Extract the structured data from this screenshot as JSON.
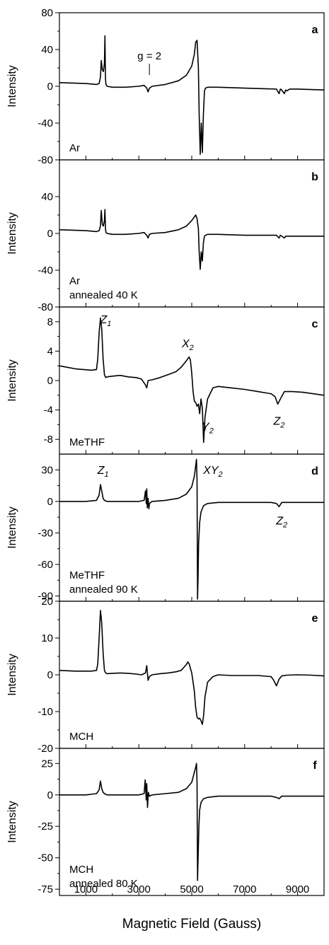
{
  "chart_data": [
    {
      "type": "line",
      "panel": "a",
      "ylabel": "Intensity",
      "ylim": [
        -80,
        80
      ],
      "yticks": [
        80,
        40,
        0,
        -40,
        -80
      ],
      "xlim": [
        0,
        10000
      ],
      "sample": [
        "Ar"
      ],
      "annotations": [
        {
          "text": "g = 2",
          "x": 3400,
          "y": 0
        }
      ],
      "peaks": [],
      "series": [
        {
          "x": [
            0,
            1000,
            1400,
            1500,
            1550,
            1580,
            1620,
            1660,
            1700,
            1720,
            1740,
            1760,
            1800,
            2000,
            2500,
            3000,
            3200,
            3300,
            3350,
            3400,
            3500,
            4000,
            4500,
            4800,
            5000,
            5100,
            5150,
            5200,
            5250,
            5280,
            5320,
            5360,
            5400,
            5440,
            5480,
            5520,
            5600,
            6000,
            7000,
            8200,
            8300,
            8350,
            8400,
            8500,
            8550,
            8600,
            8700,
            9000,
            10000
          ],
          "y": [
            4,
            3,
            2,
            3,
            10,
            28,
            18,
            16,
            25,
            55,
            8,
            2,
            0,
            -1,
            -1,
            0,
            1,
            -2,
            -6,
            -2,
            0,
            2,
            6,
            12,
            22,
            35,
            48,
            50,
            20,
            -30,
            -74,
            -40,
            -72,
            -30,
            -5,
            -2,
            -1,
            -1,
            -2,
            -3,
            -8,
            -3,
            -4,
            -8,
            -4,
            -5,
            -3,
            -3,
            -4
          ]
        }
      ]
    },
    {
      "type": "line",
      "panel": "b",
      "ylabel": "Intensity",
      "ylim": [
        -80,
        80
      ],
      "yticks": [
        40,
        0,
        -40,
        -80
      ],
      "xlim": [
        0,
        10000
      ],
      "sample": [
        "Ar",
        "annealed 40 K"
      ],
      "annotations": [],
      "peaks": [],
      "series": [
        {
          "x": [
            0,
            1000,
            1400,
            1500,
            1550,
            1580,
            1620,
            1660,
            1700,
            1720,
            1740,
            1760,
            1800,
            2000,
            2500,
            3000,
            3200,
            3300,
            3350,
            3400,
            3500,
            4000,
            4500,
            4800,
            5000,
            5100,
            5150,
            5200,
            5250,
            5280,
            5320,
            5360,
            5400,
            5440,
            5480,
            5520,
            5600,
            6000,
            7000,
            8200,
            8300,
            8350,
            8400,
            8500,
            8550,
            8600,
            8700,
            9000,
            10000
          ],
          "y": [
            4,
            3,
            2,
            3,
            8,
            25,
            10,
            8,
            14,
            26,
            5,
            1,
            0,
            -1,
            -1,
            0,
            1,
            -2,
            -5,
            -1,
            0,
            1,
            4,
            8,
            14,
            18,
            20,
            16,
            5,
            -20,
            -39,
            -20,
            -30,
            -10,
            -3,
            -2,
            -1,
            -1,
            -2,
            -2,
            -5,
            -2,
            -3,
            -5,
            -3,
            -3,
            -3,
            -3,
            -3
          ]
        }
      ]
    },
    {
      "type": "line",
      "panel": "c",
      "ylabel": "Intensity",
      "ylim": [
        -10,
        10
      ],
      "yticks": [
        8,
        4,
        0,
        -4,
        -8
      ],
      "xlim": [
        0,
        10000
      ],
      "sample": [
        "MeTHF"
      ],
      "annotations": [],
      "peaks": [
        {
          "base": "Z",
          "sub": "1",
          "x": 1750,
          "y": 7.8
        },
        {
          "base": "X",
          "sub": "2",
          "x": 4850,
          "y": 4.5
        },
        {
          "base": "Y",
          "sub": "2",
          "x": 5600,
          "y": -6.8
        },
        {
          "base": "Z",
          "sub": "2",
          "x": 8300,
          "y": -6.0
        }
      ],
      "series": [
        {
          "x": [
            0,
            300,
            600,
            900,
            1200,
            1400,
            1450,
            1500,
            1550,
            1600,
            1650,
            1700,
            1750,
            1800,
            2000,
            2300,
            2600,
            2900,
            3100,
            3250,
            3300,
            3350,
            3500,
            3800,
            4100,
            4400,
            4600,
            4800,
            4900,
            4950,
            5000,
            5050,
            5100,
            5150,
            5200,
            5250,
            5300,
            5350,
            5400,
            5450,
            5500,
            5600,
            5800,
            6000,
            6500,
            7000,
            7500,
            8000,
            8150,
            8250,
            8350,
            8500,
            8800,
            9200,
            9600,
            10000
          ],
          "y": [
            2.0,
            1.8,
            1.6,
            1.5,
            1.4,
            1.5,
            3.0,
            6.5,
            8.5,
            7.0,
            3.0,
            0.8,
            0.4,
            0.5,
            0.6,
            0.7,
            0.5,
            0.4,
            0.2,
            -0.6,
            -1.0,
            0.0,
            0.1,
            0.4,
            0.8,
            1.2,
            1.8,
            2.7,
            3.2,
            2.8,
            1.0,
            -1.5,
            -2.8,
            -3.0,
            -3.5,
            -3.2,
            -4.5,
            -2.5,
            -3.8,
            -8.4,
            -5.0,
            -2.5,
            -1.0,
            -0.8,
            -1.0,
            -1.2,
            -1.5,
            -1.8,
            -2.2,
            -3.2,
            -2.5,
            -1.5,
            -1.5,
            -1.6,
            -1.8,
            -2.0
          ]
        }
      ]
    },
    {
      "type": "line",
      "panel": "d",
      "ylabel": "Intensity",
      "ylim": [
        -95,
        45
      ],
      "yticks": [
        30,
        0,
        -30,
        -60,
        -90
      ],
      "xlim": [
        0,
        10000
      ],
      "sample": [
        "MeTHF",
        "annealed 90 K"
      ],
      "annotations": [],
      "peaks": [
        {
          "base": "Z",
          "sub": "1",
          "x": 1650,
          "y": 26
        },
        {
          "base": "XY",
          "sub": "2",
          "x": 5800,
          "y": 26
        },
        {
          "base": "Z",
          "sub": "2",
          "x": 8400,
          "y": -22
        }
      ],
      "series": [
        {
          "x": [
            0,
            1000,
            1400,
            1500,
            1550,
            1600,
            1650,
            1700,
            1800,
            2000,
            2500,
            3000,
            3200,
            3250,
            3280,
            3300,
            3320,
            3350,
            3380,
            3400,
            3500,
            4000,
            4500,
            4800,
            5000,
            5100,
            5150,
            5180,
            5200,
            5220,
            5240,
            5260,
            5300,
            5350,
            5450,
            5600,
            6000,
            7000,
            8000,
            8200,
            8300,
            8400,
            8600,
            9000,
            10000
          ],
          "y": [
            0,
            0,
            1,
            6,
            16,
            10,
            3,
            1,
            0,
            0,
            0,
            0,
            1,
            10,
            -2,
            12,
            -6,
            3,
            -7,
            -2,
            0,
            1,
            3,
            7,
            14,
            24,
            34,
            40,
            20,
            -93,
            -70,
            -40,
            -20,
            -10,
            -4,
            -2,
            -1,
            -1,
            -1,
            -2,
            -5,
            -1,
            -1,
            -1,
            -1
          ]
        }
      ]
    },
    {
      "type": "line",
      "panel": "e",
      "ylabel": "Intensity",
      "ylim": [
        -20,
        20
      ],
      "yticks": [
        20,
        10,
        0,
        -10,
        -20
      ],
      "xlim": [
        0,
        10000
      ],
      "sample": [
        "MCH"
      ],
      "annotations": [],
      "peaks": [],
      "series": [
        {
          "x": [
            0,
            300,
            600,
            900,
            1200,
            1400,
            1450,
            1500,
            1550,
            1600,
            1650,
            1700,
            1750,
            1800,
            2000,
            2300,
            2600,
            2900,
            3100,
            3250,
            3300,
            3350,
            3400,
            3500,
            3800,
            4100,
            4400,
            4600,
            4800,
            4850,
            4900,
            5000,
            5050,
            5100,
            5150,
            5200,
            5250,
            5300,
            5350,
            5400,
            5450,
            5500,
            5600,
            5800,
            6000,
            6500,
            7000,
            7500,
            8000,
            8100,
            8200,
            8300,
            8400,
            8600,
            9000,
            9500,
            10000
          ],
          "y": [
            1.2,
            1.1,
            1.0,
            1.0,
            1.0,
            1.2,
            3.0,
            10.0,
            17.5,
            14.0,
            6.0,
            1.2,
            0.5,
            0.3,
            0.4,
            0.5,
            0.4,
            0.2,
            0.0,
            0.5,
            2.5,
            -1.5,
            -0.5,
            0.0,
            0.3,
            0.5,
            0.8,
            1.2,
            2.8,
            3.5,
            3.0,
            0.5,
            -2.0,
            -4.5,
            -9.0,
            -11.5,
            -12.0,
            -11.8,
            -12.5,
            -13.5,
            -11.0,
            -6.0,
            -2.0,
            -0.5,
            0.0,
            -0.2,
            -0.2,
            -0.2,
            -0.5,
            -1.5,
            -3.0,
            -1.2,
            -0.3,
            -0.1,
            0.0,
            -0.1,
            -0.3
          ]
        }
      ]
    },
    {
      "type": "line",
      "panel": "f",
      "ylabel": "Intensity",
      "ylim": [
        -80,
        37
      ],
      "yticks": [
        25,
        0,
        -25,
        -50,
        -75
      ],
      "xlim": [
        0,
        10000
      ],
      "xticks": [
        1000,
        3000,
        5000,
        7000,
        9000
      ],
      "xlabel": "Magnetic Field (Gauss)",
      "sample": [
        "MCH",
        "annealed 80 K"
      ],
      "annotations": [],
      "peaks": [],
      "series": [
        {
          "x": [
            0,
            1000,
            1400,
            1500,
            1550,
            1600,
            1650,
            1700,
            1800,
            2000,
            2500,
            3000,
            3200,
            3240,
            3280,
            3300,
            3330,
            3360,
            3400,
            3500,
            4000,
            4500,
            4800,
            5000,
            5100,
            5150,
            5180,
            5200,
            5220,
            5240,
            5270,
            5300,
            5350,
            5450,
            5600,
            6000,
            7000,
            8000,
            8200,
            8300,
            8400,
            8600,
            9000,
            10000
          ],
          "y": [
            0,
            0,
            1,
            4,
            11,
            5,
            2,
            1,
            0,
            0,
            0,
            0,
            1,
            12,
            -4,
            9,
            -10,
            2,
            -1,
            0,
            1,
            2,
            5,
            10,
            18,
            22,
            25,
            10,
            -68,
            -50,
            -25,
            -12,
            -6,
            -3,
            -2,
            -1,
            -1,
            -1,
            -2,
            -3,
            -1,
            -1,
            -1,
            -1
          ]
        }
      ]
    }
  ]
}
